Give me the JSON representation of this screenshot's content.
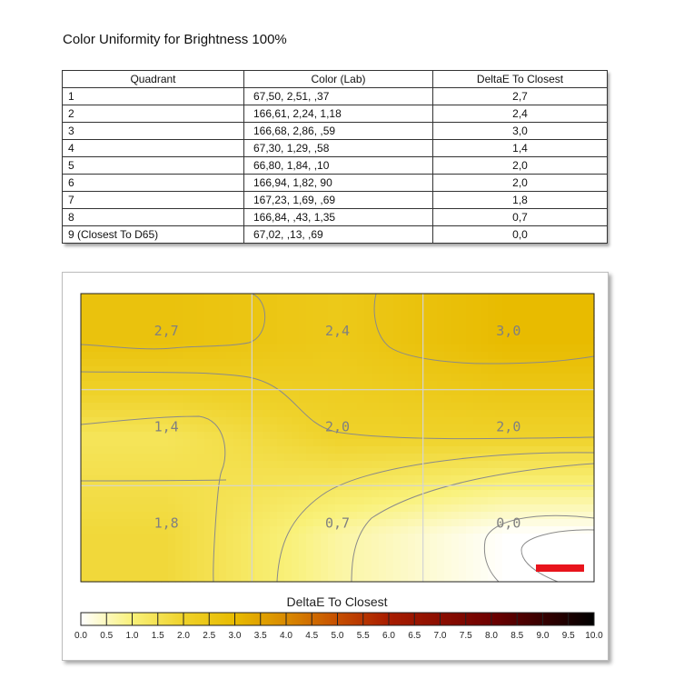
{
  "page": {
    "title": "Color Uniformity for Brightness 100%"
  },
  "table": {
    "headers": [
      "Quadrant",
      "Color (Lab)",
      "DeltaE To Closest"
    ],
    "rows": [
      {
        "quadrant": "1",
        "color": "67,50,   2,51,    ,37",
        "delta": "2,7"
      },
      {
        "quadrant": "2",
        "color": "166,61,  2,24,   1,18",
        "delta": "2,4"
      },
      {
        "quadrant": "3",
        "color": "166,68,  2,86,    ,59",
        "delta": "3,0"
      },
      {
        "quadrant": "4",
        "color": "67,30,   1,29,    ,58",
        "delta": "1,4"
      },
      {
        "quadrant": "5",
        "color": "66,80,   1,84,    ,10",
        "delta": "2,0"
      },
      {
        "quadrant": "6",
        "color": "166,94,  1,82,     90",
        "delta": "2,0"
      },
      {
        "quadrant": "7",
        "color": "167,23,  1,69,    ,69",
        "delta": "1,8"
      },
      {
        "quadrant": "8",
        "color": "166,84,    ,43,  1,35",
        "delta": "0,7"
      },
      {
        "quadrant": "9 (Closest To D65)",
        "color": "67,02,    ,13,    ,69",
        "delta": "0,0"
      }
    ]
  },
  "chart_data": {
    "type": "heatmap",
    "grid": {
      "rows": 3,
      "cols": 3
    },
    "values": [
      [
        2.7,
        2.4,
        3.0
      ],
      [
        1.4,
        2.0,
        2.0
      ],
      [
        1.8,
        0.7,
        0.0
      ]
    ],
    "cell_labels": [
      [
        "2,7",
        "2,4",
        "3,0"
      ],
      [
        "1,4",
        "2,0",
        "2,0"
      ],
      [
        "1,8",
        "0,7",
        "0,0"
      ]
    ],
    "colorbar": {
      "title": "DeltaE To Closest",
      "range": [
        0,
        10
      ],
      "ticks": [
        "0.0",
        "0.5",
        "1.0",
        "1.5",
        "2.0",
        "2.5",
        "3.0",
        "3.5",
        "4.0",
        "4.5",
        "5.0",
        "5.5",
        "6.0",
        "6.5",
        "7.0",
        "7.5",
        "8.0",
        "8.5",
        "9.0",
        "9.5",
        "10.0"
      ],
      "colors": [
        "#ffffff",
        "#f9f17a",
        "#efd22a",
        "#e8bb00",
        "#d98a00",
        "#c64f00",
        "#a81c00",
        "#6e0000",
        "#000000"
      ]
    },
    "marker_color": "#e8141c",
    "grid_lines": true
  }
}
